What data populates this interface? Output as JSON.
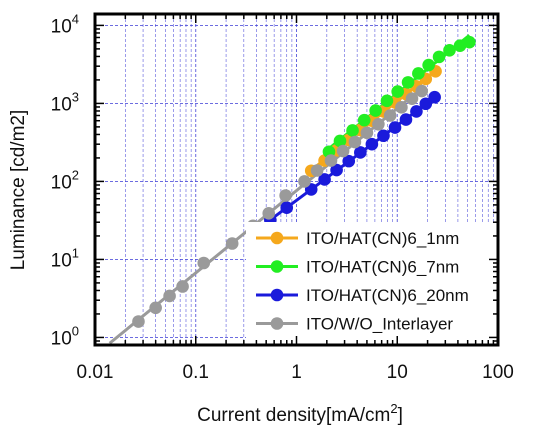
{
  "chart_data": {
    "type": "scatter",
    "xscale": "log",
    "yscale": "log",
    "xlim": [
      0.01,
      100
    ],
    "ylim": [
      0.8,
      14000
    ],
    "grid": true,
    "xlabel": "Current density[mA/cm",
    "xlabel_sup": "2",
    "xlabel_end": "]",
    "ylabel": "Luminance [cd/m2]",
    "x_ticks": [
      {
        "value": 0.01,
        "label": "0.01"
      },
      {
        "value": 0.1,
        "label": "0.1"
      },
      {
        "value": 1,
        "label": "1"
      },
      {
        "value": 10,
        "label": "10"
      },
      {
        "value": 100,
        "label": "100"
      }
    ],
    "y_ticks": [
      {
        "value": 1,
        "base": "10",
        "exp": "0"
      },
      {
        "value": 10,
        "base": "10",
        "exp": "1"
      },
      {
        "value": 100,
        "base": "10",
        "exp": "2"
      },
      {
        "value": 1000,
        "base": "10",
        "exp": "3"
      },
      {
        "value": 10000,
        "base": "10",
        "exp": "4"
      }
    ],
    "legend_placement": "lower-right",
    "series": [
      {
        "name": "ITO/HAT(CN)6_1nm",
        "color": "#f5a81c",
        "points": [
          [
            1.4,
            137
          ],
          [
            1.9,
            185
          ],
          [
            2.5,
            250
          ],
          [
            3.3,
            340
          ],
          [
            4.3,
            455
          ],
          [
            5.6,
            600
          ],
          [
            7.3,
            790
          ],
          [
            9.5,
            1030
          ],
          [
            12.2,
            1320
          ],
          [
            15.4,
            1660
          ],
          [
            19.2,
            2060
          ],
          [
            24,
            2580
          ]
        ]
      },
      {
        "name": "ITO/HAT(CN)6_7nm",
        "color": "#22ee22",
        "points": [
          [
            2.1,
            240
          ],
          [
            2.7,
            330
          ],
          [
            3.6,
            450
          ],
          [
            4.7,
            610
          ],
          [
            6.1,
            810
          ],
          [
            7.9,
            1080
          ],
          [
            10.1,
            1420
          ],
          [
            12.8,
            1860
          ],
          [
            16.2,
            2420
          ],
          [
            20.5,
            3100
          ],
          [
            26,
            3950
          ],
          [
            33,
            4800
          ],
          [
            42,
            5500
          ],
          [
            52,
            6100
          ]
        ]
      },
      {
        "name": "ITO/HAT(CN)6_20nm",
        "color": "#1a1adb",
        "points": [
          [
            0.55,
            32
          ],
          [
            0.8,
            46
          ],
          [
            1.4,
            79
          ],
          [
            1.9,
            106
          ],
          [
            2.5,
            140
          ],
          [
            3.3,
            182
          ],
          [
            4.3,
            235
          ],
          [
            5.6,
            300
          ],
          [
            7.3,
            385
          ],
          [
            9.5,
            490
          ],
          [
            12.2,
            620
          ],
          [
            15.5,
            790
          ],
          [
            19.2,
            990
          ],
          [
            23.5,
            1200
          ]
        ]
      },
      {
        "name": "ITO/W/O_Interlayer",
        "color": "#9a9a9a",
        "points": [
          [
            0.027,
            1.6
          ],
          [
            0.04,
            2.4
          ],
          [
            0.055,
            3.4
          ],
          [
            0.074,
            4.5
          ],
          [
            0.12,
            9
          ],
          [
            0.23,
            16
          ],
          [
            0.37,
            27
          ],
          [
            0.53,
            39
          ],
          [
            0.78,
            66
          ],
          [
            1.2,
            100
          ],
          [
            1.6,
            138
          ],
          [
            2.2,
            185
          ],
          [
            2.9,
            245
          ],
          [
            3.8,
            320
          ],
          [
            5.0,
            420
          ],
          [
            6.5,
            540
          ],
          [
            8.5,
            700
          ],
          [
            11,
            890
          ],
          [
            14,
            1150
          ],
          [
            17.5,
            1440
          ]
        ]
      }
    ]
  }
}
